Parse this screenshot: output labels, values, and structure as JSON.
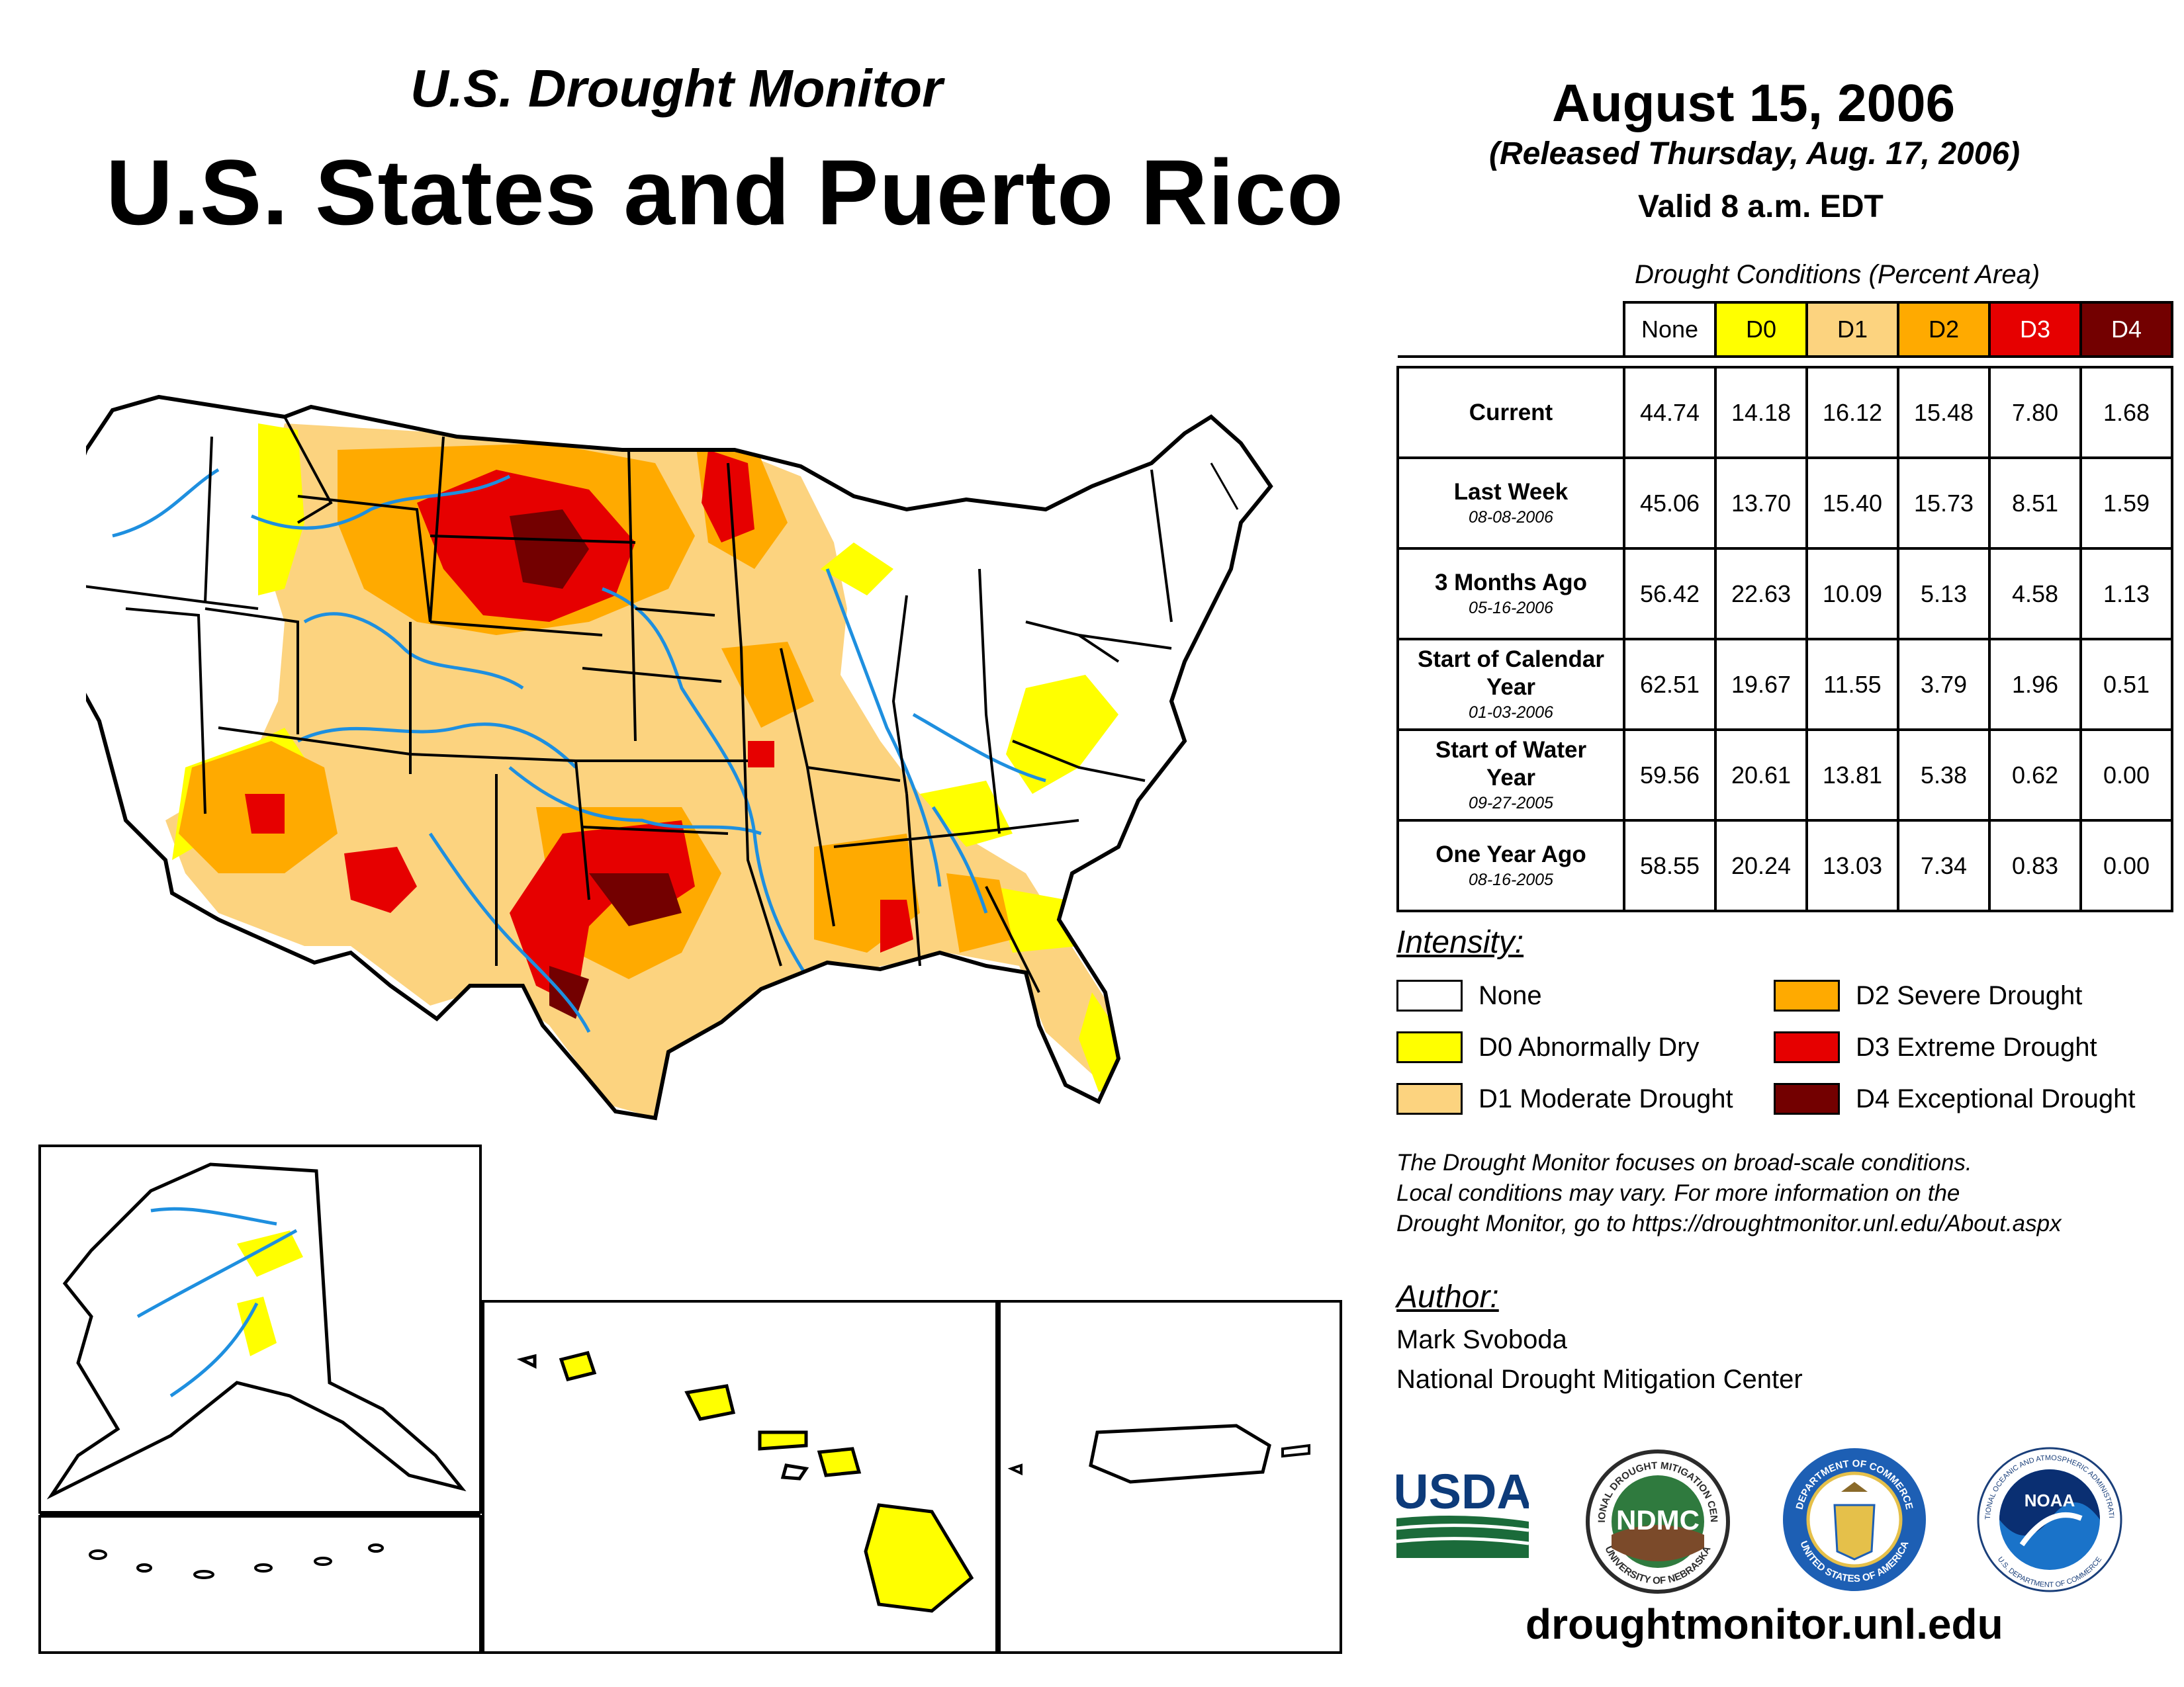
{
  "header": {
    "subtitle": "U.S. Drought Monitor",
    "title": "U.S. States and Puerto Rico",
    "date": "August 15, 2006",
    "released": "(Released Thursday, Aug. 17, 2006)",
    "valid": "Valid 8 a.m. EDT"
  },
  "table": {
    "caption": "Drought Conditions (Percent Area)",
    "columns": [
      "None",
      "D0",
      "D1",
      "D2",
      "D3",
      "D4"
    ],
    "column_colors": [
      "#ffffff",
      "#ffff00",
      "#fcd37f",
      "#ffaa00",
      "#e60000",
      "#730000"
    ],
    "rows": [
      {
        "label": "Current",
        "date": "",
        "values": [
          "44.74",
          "14.18",
          "16.12",
          "15.48",
          "7.80",
          "1.68"
        ]
      },
      {
        "label": "Last Week",
        "date": "08-08-2006",
        "values": [
          "45.06",
          "13.70",
          "15.40",
          "15.73",
          "8.51",
          "1.59"
        ]
      },
      {
        "label": "3 Months Ago",
        "date": "05-16-2006",
        "values": [
          "56.42",
          "22.63",
          "10.09",
          "5.13",
          "4.58",
          "1.13"
        ]
      },
      {
        "label": "Start of Calendar Year",
        "date": "01-03-2006",
        "values": [
          "62.51",
          "19.67",
          "11.55",
          "3.79",
          "1.96",
          "0.51"
        ]
      },
      {
        "label": "Start of Water Year",
        "date": "09-27-2005",
        "values": [
          "59.56",
          "20.61",
          "13.81",
          "5.38",
          "0.62",
          "0.00"
        ]
      },
      {
        "label": "One Year Ago",
        "date": "08-16-2005",
        "values": [
          "58.55",
          "20.24",
          "13.03",
          "7.34",
          "0.83",
          "0.00"
        ]
      }
    ]
  },
  "legend": {
    "title": "Intensity:",
    "items": [
      {
        "label": "None",
        "color": "#ffffff"
      },
      {
        "label": "D0 Abnormally Dry",
        "color": "#ffff00"
      },
      {
        "label": "D1 Moderate Drought",
        "color": "#fcd37f"
      },
      {
        "label": "D2 Severe Drought",
        "color": "#ffaa00"
      },
      {
        "label": "D3 Extreme Drought",
        "color": "#e60000"
      },
      {
        "label": "D4 Exceptional Drought",
        "color": "#730000"
      }
    ]
  },
  "note": {
    "line1": "The Drought Monitor focuses on broad-scale conditions.",
    "line2": "Local conditions may vary. For more information on the",
    "line3": "Drought Monitor, go to https://droughtmonitor.unl.edu/About.aspx"
  },
  "author": {
    "label": "Author:",
    "name": "Mark Svoboda",
    "org": "National Drought Mitigation Center"
  },
  "logos": {
    "usda": "USDA",
    "ndmc": "NDMC",
    "ndmc_ring_top": "NATIONAL DROUGHT MITIGATION CENTER",
    "ndmc_ring_bottom": "UNIVERSITY OF NEBRASKA",
    "commerce_ring_top": "DEPARTMENT OF COMMERCE",
    "commerce_ring_bottom": "UNITED STATES OF AMERICA",
    "noaa": "NOAA",
    "noaa_ring_top": "NATIONAL OCEANIC AND ATMOSPHERIC ADMINISTRATION",
    "noaa_ring_bottom": "U.S. DEPARTMENT OF COMMERCE"
  },
  "website": "droughtmonitor.unl.edu"
}
